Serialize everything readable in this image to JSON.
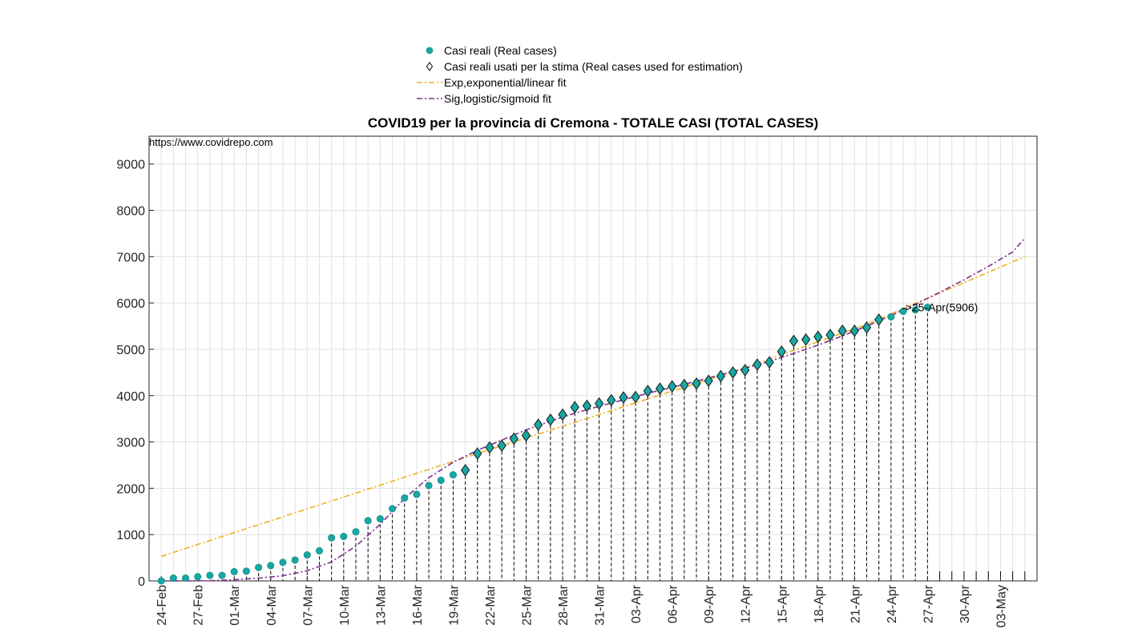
{
  "chart_data": {
    "type": "scatter",
    "title": "COVID19 per la provincia di Cremona - TOTALE CASI (TOTAL CASES)",
    "source_text": "https://www.covidrepo.com",
    "xlabel": "",
    "ylabel": "",
    "x_start_date": "2020-02-24",
    "x_range_days": [
      -1,
      72
    ],
    "ylim": [
      0,
      9600
    ],
    "yticks": [
      0,
      1000,
      2000,
      3000,
      4000,
      5000,
      6000,
      7000,
      8000,
      9000
    ],
    "xtick_days": [
      0,
      3,
      6,
      9,
      12,
      15,
      18,
      21,
      24,
      27,
      30,
      33,
      36,
      39,
      42,
      45,
      48,
      51,
      54,
      57,
      60,
      63,
      66,
      69
    ],
    "xtick_labels": [
      "24-Feb",
      "27-Feb",
      "01-Mar",
      "04-Mar",
      "07-Mar",
      "10-Mar",
      "13-Mar",
      "16-Mar",
      "19-Mar",
      "22-Mar",
      "25-Mar",
      "28-Mar",
      "31-Mar",
      "03-Apr",
      "06-Apr",
      "09-Apr",
      "12-Apr",
      "15-Apr",
      "18-Apr",
      "21-Apr",
      "24-Apr",
      "27-Apr",
      "30-Apr",
      "03-May"
    ],
    "grid": true,
    "legend_position": "top-center",
    "colors": {
      "real": "#17a8a3",
      "exp": "#edb120",
      "sig": "#7e2f8e",
      "grid": "#e1e1e1"
    },
    "legend": [
      {
        "key": "real",
        "label": "Casi reali (Real cases)"
      },
      {
        "key": "used",
        "label": "Casi reali usati per la stima (Real cases used for estimation)"
      },
      {
        "key": "exp",
        "label": "Exp,exponential/linear fit"
      },
      {
        "key": "sig",
        "label": "Sig,logistic/sigmoid fit"
      }
    ],
    "series": [
      {
        "name": "Casi reali (Real cases)",
        "values": [
          0,
          60,
          60,
          90,
          120,
          120,
          200,
          210,
          290,
          330,
          400,
          450,
          560,
          650,
          930,
          960,
          1060,
          1300,
          1340,
          1560,
          1790,
          1870,
          2060,
          2170,
          2290,
          2390,
          2750,
          2880,
          2920,
          3070,
          3140,
          3370,
          3480,
          3590,
          3750,
          3780,
          3830,
          3900,
          3960,
          3970,
          4100,
          4150,
          4200,
          4230,
          4260,
          4320,
          4420,
          4500,
          4550,
          4670,
          4720,
          4950,
          5180,
          5210,
          5270,
          5310,
          5400,
          5400,
          5470,
          5640,
          5700,
          5820,
          5850,
          5906
        ]
      },
      {
        "name": "Casi reali usati per la stima (Real cases used for estimation)",
        "x_days": [
          25,
          26,
          27,
          28,
          29,
          30,
          31,
          32,
          33,
          34,
          35,
          36,
          37,
          38,
          39,
          40,
          41,
          42,
          43,
          44,
          45,
          46,
          47,
          48,
          49,
          50,
          51,
          52,
          53,
          54,
          55,
          56,
          57,
          58,
          59
        ]
      },
      {
        "name": "Exp,exponential/linear fit",
        "x_days": [
          0,
          26,
          48,
          58,
          71
        ],
        "values": [
          530,
          2750,
          4600,
          5540,
          7000
        ]
      },
      {
        "name": "Sig,logistic/sigmoid fit",
        "x_days": [
          0,
          4,
          6,
          8,
          10,
          12,
          14,
          16,
          18,
          20,
          22,
          24,
          26,
          28,
          30,
          32,
          34,
          36,
          38,
          40,
          42,
          44,
          46,
          48,
          50,
          52,
          54,
          56,
          58,
          60,
          62,
          64,
          66,
          68,
          70,
          71
        ],
        "values": [
          0,
          5,
          25,
          60,
          110,
          220,
          410,
          750,
          1220,
          1780,
          2230,
          2560,
          2820,
          3040,
          3260,
          3450,
          3620,
          3770,
          3910,
          4050,
          4180,
          4310,
          4450,
          4590,
          4740,
          4910,
          5090,
          5290,
          5500,
          5730,
          5970,
          6230,
          6500,
          6790,
          7100,
          7400
        ]
      }
    ],
    "annotations": [
      {
        "day": 61,
        "value": 5906,
        "text": "->25-Apr(5906)"
      }
    ]
  }
}
